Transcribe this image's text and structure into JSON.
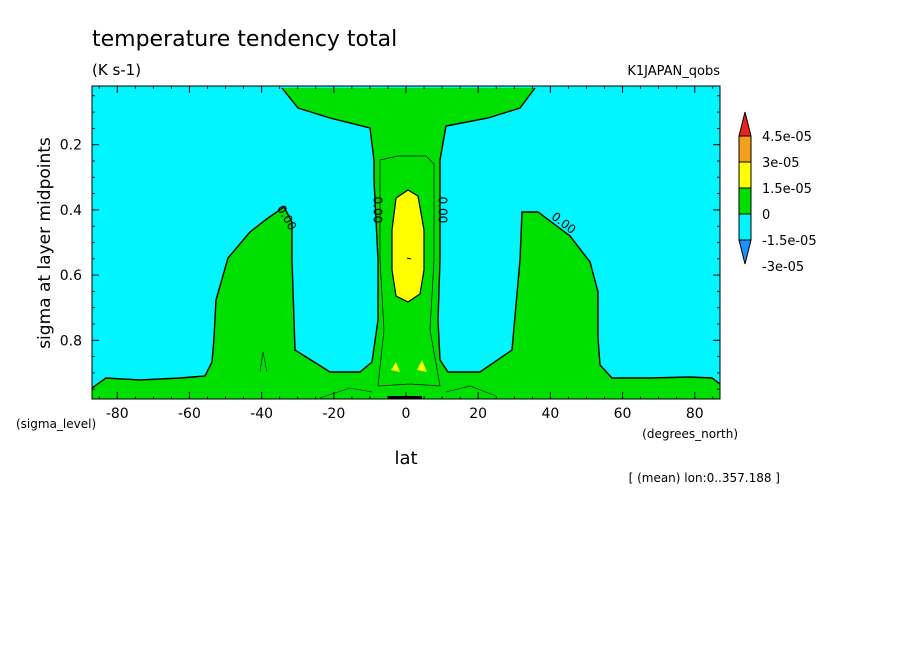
{
  "chart_data": {
    "type": "contour",
    "title": "temperature tendency total",
    "units": "(K s-1)",
    "dataset": "K1JAPAN_qobs",
    "xlabel": "lat",
    "ylabel": "sigma at layer midpoints",
    "x_units": "(degrees_north)",
    "y_units": "(sigma_level)",
    "footnote": "[ (mean) lon:0..357.188 ]",
    "xlim": [
      -87,
      87
    ],
    "ylim": [
      0.98,
      0.02
    ],
    "x_ticks": [
      -80,
      -60,
      -40,
      -20,
      0,
      20,
      40,
      60,
      80
    ],
    "y_ticks": [
      0.2,
      0.4,
      0.6,
      0.8
    ],
    "contour_labels": [
      {
        "text": "0.00",
        "lat": -34,
        "sigma": 0.43
      },
      {
        "text": "0.00",
        "lat": -9,
        "sigma": 0.4
      },
      {
        "text": "0.00",
        "lat": 9,
        "sigma": 0.4
      },
      {
        "text": "0.00",
        "lat": 43,
        "sigma": 0.45
      }
    ],
    "colorbar": {
      "levels": [
        "4.5e-05",
        "3e-05",
        "1.5e-05",
        "0",
        "-1.5e-05",
        "-3e-05"
      ],
      "colors": [
        "#e8231e",
        "#f5a01c",
        "#ffff00",
        "#00e000",
        "#00f5ff",
        "#1e90ff"
      ]
    },
    "fill_colors": {
      "negative": "#00f5ff",
      "zero_to_1.5e-05": "#00e000",
      "1.5e-05_to_3e-05": "#ffff00"
    }
  }
}
